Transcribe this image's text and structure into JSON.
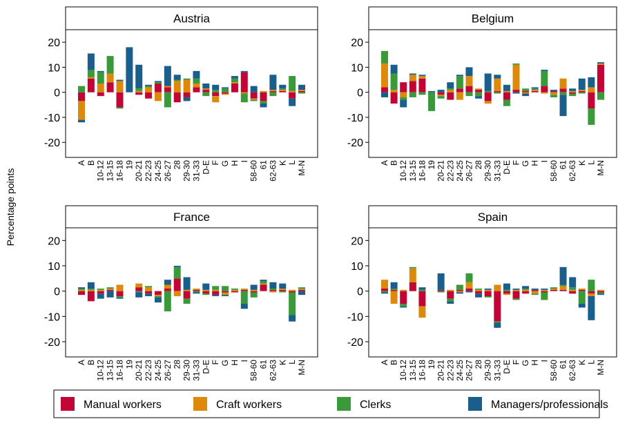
{
  "y_axis_label": "Percentage points",
  "chart_data": [
    {
      "type": "bar",
      "title": "Austria",
      "stacked": true,
      "categories": [
        "A",
        "B",
        "10-12",
        "13-15",
        "16-18",
        "19",
        "20-21",
        "22-23",
        "24-25",
        "26-27",
        "28",
        "29-30",
        "31-33",
        "D-E",
        "F",
        "G",
        "H",
        "I",
        "58-60",
        "61",
        "62-63",
        "K",
        "L",
        "M-N"
      ],
      "series": [
        {
          "name": "Manual workers",
          "color": "#c10534",
          "values": [
            -3.5,
            5.5,
            -1.5,
            4,
            -6,
            0,
            -1,
            -2.5,
            3.5,
            2,
            -4,
            -2,
            2,
            1,
            -1.5,
            -0.5,
            3.5,
            8,
            -2.5,
            -3.5,
            0.5,
            0.5,
            -2.5,
            0.5
          ]
        },
        {
          "name": "Craft workers",
          "color": "#dd8a0c",
          "values": [
            -7.5,
            0.5,
            3.5,
            3.5,
            4.5,
            0,
            0.5,
            2,
            -3.5,
            0.5,
            4.5,
            5,
            1.5,
            0.5,
            -2.5,
            -0.5,
            0.5,
            -0.5,
            -0.5,
            0.5,
            0.5,
            0.5,
            0.5,
            0.5
          ]
        },
        {
          "name": "Clerks",
          "color": "#3a9a3a",
          "values": [
            2.5,
            3,
            4.5,
            7,
            -0.5,
            0,
            1,
            0.5,
            0.5,
            -6,
            0.5,
            0.5,
            2,
            -1.5,
            1,
            1.5,
            1.5,
            -3.5,
            -0.5,
            -1,
            -1.5,
            0.5,
            6,
            -0.5
          ]
        },
        {
          "name": "Managers/professionals",
          "color": "#1a5e8c",
          "values": [
            -1,
            6.5,
            0.5,
            0,
            0.5,
            18,
            9.5,
            0.5,
            0.5,
            8,
            2,
            -1.5,
            3,
            2,
            2,
            0.5,
            1,
            0.5,
            2.5,
            -1.5,
            6,
            1.5,
            -3,
            2
          ]
        }
      ],
      "ylim": [
        -26,
        25
      ],
      "yticks": [
        -20,
        -10,
        0,
        10,
        20
      ]
    },
    {
      "type": "bar",
      "title": "Belgium",
      "stacked": true,
      "categories": [
        "A",
        "B",
        "10-12",
        "13-15",
        "16-18",
        "19",
        "20-21",
        "22-23",
        "24-25",
        "26-27",
        "28",
        "29-30",
        "31-33",
        "D-E",
        "F",
        "G",
        "H",
        "I",
        "58-60",
        "61",
        "62-63",
        "K",
        "L",
        "M-N"
      ],
      "series": [
        {
          "name": "Manual workers",
          "color": "#c10534",
          "values": [
            2,
            -4.5,
            4,
            4.5,
            5.5,
            0,
            -1,
            -3,
            1.5,
            2.5,
            1,
            -3.5,
            0.5,
            -3,
            1,
            0.5,
            0.5,
            2.5,
            0.5,
            1.5,
            -0.5,
            0.5,
            -6.5,
            11
          ]
        },
        {
          "name": "Craft workers",
          "color": "#dd8a0c",
          "values": [
            9.5,
            1,
            -2,
            2.5,
            1,
            0,
            -0.5,
            1,
            -3,
            4,
            0.5,
            -1,
            5,
            0.5,
            10,
            -0.5,
            0.5,
            -0.5,
            -1,
            4,
            0.5,
            0.5,
            2,
            0.5
          ]
        },
        {
          "name": "Clerks",
          "color": "#3a9a3a",
          "values": [
            5,
            6.5,
            -1,
            -2,
            -1,
            -7.5,
            -1,
            0.5,
            5,
            -1.5,
            -1.5,
            0.5,
            -0.5,
            -2.5,
            0.5,
            1,
            0.5,
            6,
            -1,
            -1,
            -1,
            -0.5,
            -6.5,
            -3
          ]
        },
        {
          "name": "Managers/professionals",
          "color": "#1a5e8c",
          "values": [
            -2,
            3.5,
            -3,
            0.5,
            0.5,
            0.5,
            1,
            2.5,
            0.5,
            3.5,
            -1,
            7,
            1.5,
            2.5,
            -0.5,
            -1,
            0.5,
            0.5,
            0.5,
            -8.5,
            1,
            4.5,
            4,
            0.5
          ]
        }
      ],
      "ylim": [
        -26,
        25
      ],
      "yticks": [
        -20,
        -10,
        0,
        10,
        20
      ]
    },
    {
      "type": "bar",
      "title": "France",
      "stacked": true,
      "categories": [
        "A",
        "B",
        "10-12",
        "13-15",
        "16-18",
        "19",
        "20-21",
        "22-23",
        "24-25",
        "26-27",
        "28",
        "29-30",
        "31-33",
        "D-E",
        "F",
        "G",
        "H",
        "I",
        "58-60",
        "61",
        "62-63",
        "K",
        "L",
        "M-N"
      ],
      "series": [
        {
          "name": "Manual workers",
          "color": "#c10534",
          "values": [
            -1.5,
            -4,
            -1,
            0.5,
            -2,
            0,
            1.5,
            -1,
            -1.5,
            1,
            5,
            -3,
            0.5,
            -1,
            -1.5,
            -0.5,
            -0.5,
            0.5,
            -0.5,
            2.5,
            0.5,
            0.5,
            -0.5,
            0.5
          ]
        },
        {
          "name": "Craft workers",
          "color": "#dd8a0c",
          "values": [
            0.5,
            0.5,
            0.5,
            0.5,
            2.5,
            0,
            1.5,
            1.5,
            -0.5,
            1.5,
            -2,
            0.5,
            0.5,
            0.5,
            0.5,
            -1,
            0.5,
            0.5,
            0.5,
            0.5,
            -0.5,
            0.5,
            0.5,
            0.5
          ]
        },
        {
          "name": "Clerks",
          "color": "#3a9a3a",
          "values": [
            0.5,
            0.5,
            0.5,
            0.5,
            -0.5,
            0,
            -0.5,
            0.5,
            -0.5,
            -8,
            4.5,
            -2,
            -0.5,
            -0.5,
            1.5,
            2,
            0.5,
            -5,
            -2,
            1,
            0.5,
            -0.5,
            -9,
            0.5
          ]
        },
        {
          "name": "Managers/professionals",
          "color": "#1a5e8c",
          "values": [
            0.5,
            2.5,
            -2,
            -2.5,
            -0.5,
            0,
            -2,
            -1,
            -2,
            2,
            0.5,
            5,
            -0.5,
            2.5,
            -0.5,
            -0.5,
            0,
            -2,
            2,
            0.5,
            2.5,
            2,
            -2.5,
            -1.5
          ]
        }
      ],
      "ylim": [
        -26,
        25
      ],
      "yticks": [
        -20,
        -10,
        0,
        10,
        20
      ]
    },
    {
      "type": "bar",
      "title": "Spain",
      "stacked": true,
      "categories": [
        "A",
        "B",
        "10-12",
        "13-15",
        "16-18",
        "19",
        "20-21",
        "22-23",
        "24-25",
        "26-27",
        "28",
        "29-30",
        "31-33",
        "D-E",
        "F",
        "G",
        "H",
        "I",
        "58-60",
        "61",
        "62-63",
        "K",
        "L",
        "M-N"
      ],
      "series": [
        {
          "name": "Manual workers",
          "color": "#c10534",
          "values": [
            1,
            0.5,
            -5,
            3.5,
            -6,
            0,
            0.5,
            -3,
            0.5,
            1,
            -1,
            -2,
            -12,
            -1,
            -3,
            -1,
            0.5,
            -0.5,
            0.5,
            0.5,
            -1,
            0.5,
            -1,
            -0.5
          ]
        },
        {
          "name": "Craft workers",
          "color": "#dd8a0c",
          "values": [
            3.5,
            -5,
            0.5,
            5.5,
            -4.5,
            0,
            0,
            0.5,
            -0.5,
            2.5,
            0.5,
            0.5,
            2.5,
            -0.5,
            0.5,
            0.5,
            -1,
            0.5,
            0.5,
            1.5,
            0.5,
            0.5,
            -1,
            0.5
          ]
        },
        {
          "name": "Clerks",
          "color": "#3a9a3a",
          "values": [
            -0.5,
            0.5,
            -1,
            0.5,
            0.5,
            0,
            -0.5,
            -1,
            2,
            3.5,
            0.5,
            -0.5,
            -0.5,
            0.5,
            -0.5,
            0.5,
            -0.5,
            -3,
            0.5,
            0.5,
            1,
            -5,
            4.5,
            -0.5
          ]
        },
        {
          "name": "Managers/professionals",
          "color": "#1a5e8c",
          "values": [
            -0.5,
            2.5,
            -0.5,
            0,
            1,
            0,
            6.5,
            -1,
            -0.5,
            -0.5,
            -1.5,
            0.5,
            -2,
            2.5,
            0.5,
            1,
            0.5,
            0.5,
            0,
            7,
            4,
            -1.5,
            -9.5,
            -0.5
          ]
        }
      ],
      "ylim": [
        -26,
        25
      ],
      "yticks": [
        -20,
        -10,
        0,
        10,
        20
      ]
    }
  ]
}
